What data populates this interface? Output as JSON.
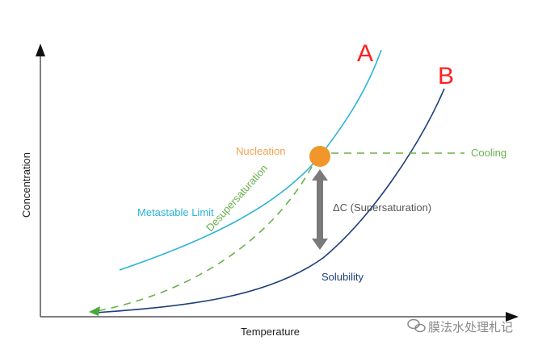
{
  "labels": {
    "y_axis": "Concentration",
    "x_axis": "Temperature",
    "curve_a": "A",
    "curve_b": "B",
    "nucleation": "Nucleation",
    "cooling": "Cooling",
    "metastable": "Metastable Limit",
    "desupersaturation": "Desupersaturation",
    "supersaturation": "ΔC (Supersaturation)",
    "solubility": "Solubility"
  },
  "watermark": "膜法水处理札记",
  "colors": {
    "metastable": "#2bb3d6",
    "solubility": "#1e3f7a",
    "dashed": "#6ab04c",
    "nucleation": "#f0962a",
    "arrow": "#7a7a7a",
    "letters": "#ff2020"
  }
}
